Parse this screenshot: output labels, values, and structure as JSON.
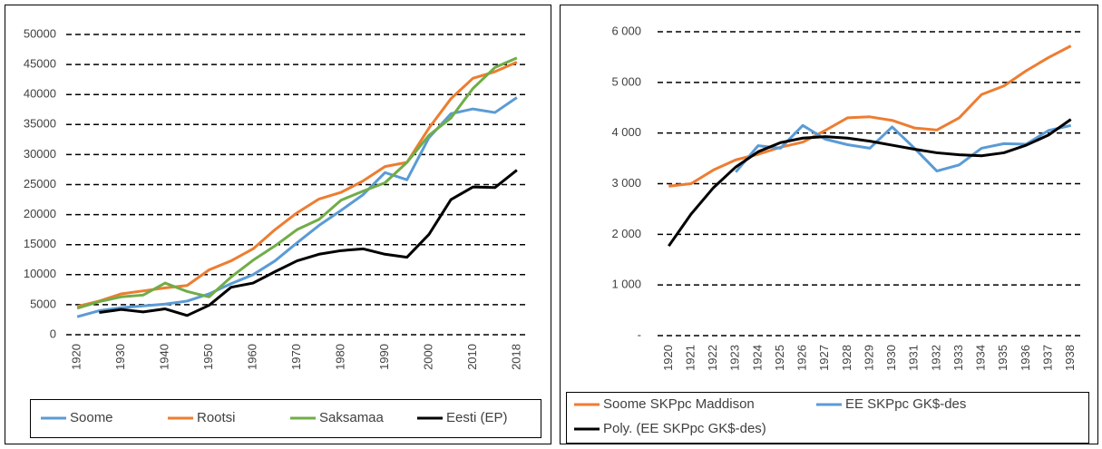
{
  "chart_data": [
    {
      "type": "line",
      "categories": [
        1920,
        null,
        1930,
        null,
        1940,
        null,
        1950,
        null,
        1960,
        null,
        1970,
        null,
        1980,
        null,
        1990,
        null,
        2000,
        null,
        2010,
        null,
        2018
      ],
      "series": [
        {
          "name": "Soome",
          "color": "#5b9bd5",
          "values": [
            3000,
            4000,
            4500,
            4800,
            5100,
            5600,
            6800,
            8500,
            10000,
            12300,
            15300,
            18200,
            20700,
            23300,
            27000,
            25800,
            32800,
            36800,
            37600,
            37000,
            39500
          ]
        },
        {
          "name": "Rootsi",
          "color": "#ed7d31",
          "values": [
            4700,
            5600,
            6800,
            7300,
            7800,
            8200,
            10800,
            12300,
            14300,
            17500,
            20300,
            22600,
            23700,
            25600,
            28000,
            28700,
            34400,
            39300,
            42700,
            43800,
            45400
          ]
        },
        {
          "name": "Saksamaa",
          "color": "#70ad47",
          "values": [
            4400,
            5500,
            6300,
            6600,
            8600,
            7200,
            6300,
            9600,
            12400,
            14800,
            17500,
            19200,
            22400,
            23900,
            25300,
            28700,
            33200,
            36100,
            41000,
            44500,
            46100
          ]
        },
        {
          "name": "Eesti (EP)",
          "color": "#000000",
          "values": [
            null,
            3700,
            4200,
            3800,
            4300,
            3200,
            4900,
            7900,
            8600,
            10500,
            12300,
            13400,
            14000,
            14300,
            13400,
            12900,
            16700,
            22500,
            24600,
            24500,
            27400
          ]
        }
      ],
      "ylim": [
        0,
        50000
      ],
      "yticks": [
        0,
        5000,
        10000,
        15000,
        20000,
        25000,
        30000,
        35000,
        40000,
        45000,
        50000
      ],
      "grid": true,
      "legend": "bottom"
    },
    {
      "type": "line",
      "categories": [
        1920,
        1921,
        1922,
        1923,
        1924,
        1925,
        1926,
        1927,
        1928,
        1929,
        1930,
        1931,
        1932,
        1933,
        1934,
        1935,
        1936,
        1937,
        1938
      ],
      "series": [
        {
          "name": "Soome SKPpc Maddison",
          "color": "#ed7d31",
          "values": [
            2950,
            3000,
            3270,
            3470,
            3580,
            3720,
            3820,
            4050,
            4300,
            4320,
            4250,
            4100,
            4060,
            4300,
            4760,
            4930,
            5230,
            5490,
            5720
          ]
        },
        {
          "name": "EE SKPpc GK$-des",
          "color": "#5b9bd5",
          "values": [
            null,
            null,
            null,
            3230,
            3750,
            3700,
            4150,
            3880,
            3770,
            3700,
            4120,
            3700,
            3250,
            3370,
            3700,
            3790,
            3780,
            4050,
            4150
          ]
        },
        {
          "name": "Poly. (EE SKPpc GK$-des)",
          "color": "#000000",
          "values": [
            1770,
            2400,
            2920,
            3330,
            3630,
            3810,
            3900,
            3930,
            3900,
            3840,
            3760,
            3680,
            3610,
            3570,
            3550,
            3610,
            3760,
            3960,
            4270
          ]
        }
      ],
      "ylim": [
        0,
        6000
      ],
      "yticks": [
        {
          "value": 0,
          "label": "-"
        },
        {
          "value": 1000,
          "label": "1 000"
        },
        {
          "value": 2000,
          "label": "2 000"
        },
        {
          "value": 3000,
          "label": "3 000"
        },
        {
          "value": 4000,
          "label": "4 000"
        },
        {
          "value": 5000,
          "label": "5 000"
        },
        {
          "value": 6000,
          "label": "6 000"
        }
      ],
      "grid": true,
      "legend": "bottom"
    }
  ]
}
